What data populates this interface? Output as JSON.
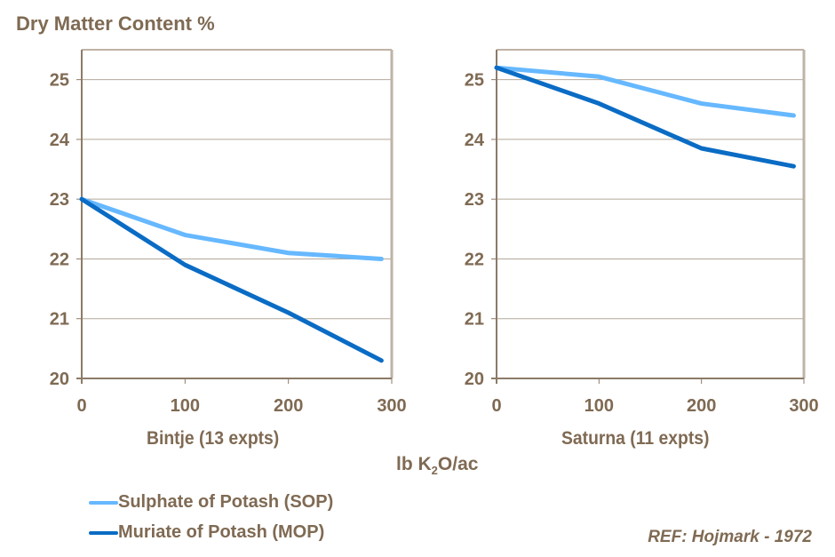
{
  "title": "Dry Matter Content %",
  "x_unit_label": {
    "prefix": "lb K",
    "subscript": "2",
    "suffix": "O/ac"
  },
  "reference": "REF: Hojmark - 1972",
  "colors": {
    "sop": "#66b8ff",
    "mop": "#0a6cc4",
    "text": "#7f6a53",
    "grid": "#b4a899",
    "frame": "#bfb3a6"
  },
  "legend": [
    {
      "label": "Sulphate of Potash (SOP)",
      "color": "#66b8ff"
    },
    {
      "label": "Muriate of Potash (MOP)",
      "color": "#0a6cc4"
    }
  ],
  "chart_data": [
    {
      "type": "line",
      "title": "",
      "xlabel": "Bintje (13 expts)",
      "ylabel": "Dry Matter Content %",
      "xlim": [
        0,
        300
      ],
      "ylim": [
        20,
        25.5
      ],
      "xticks": [
        0,
        100,
        200,
        300
      ],
      "yticks": [
        20,
        21,
        22,
        23,
        24,
        25
      ],
      "grid": true,
      "series": [
        {
          "name": "Sulphate of Potash (SOP)",
          "x": [
            0,
            100,
            200,
            290
          ],
          "y": [
            23.0,
            22.4,
            22.1,
            22.0
          ]
        },
        {
          "name": "Muriate of Potash (MOP)",
          "x": [
            0,
            100,
            200,
            290
          ],
          "y": [
            23.0,
            21.9,
            21.1,
            20.3
          ]
        }
      ]
    },
    {
      "type": "line",
      "title": "",
      "xlabel": "Saturna (11 expts)",
      "ylabel": "Dry Matter Content %",
      "xlim": [
        0,
        300
      ],
      "ylim": [
        20,
        25.5
      ],
      "xticks": [
        0,
        100,
        200,
        300
      ],
      "yticks": [
        20,
        21,
        22,
        23,
        24,
        25
      ],
      "grid": true,
      "series": [
        {
          "name": "Sulphate of Potash (SOP)",
          "x": [
            0,
            100,
            200,
            290
          ],
          "y": [
            25.2,
            25.05,
            24.6,
            24.4
          ]
        },
        {
          "name": "Muriate of Potash (MOP)",
          "x": [
            0,
            100,
            200,
            290
          ],
          "y": [
            25.2,
            24.6,
            23.85,
            23.55
          ]
        }
      ]
    }
  ]
}
